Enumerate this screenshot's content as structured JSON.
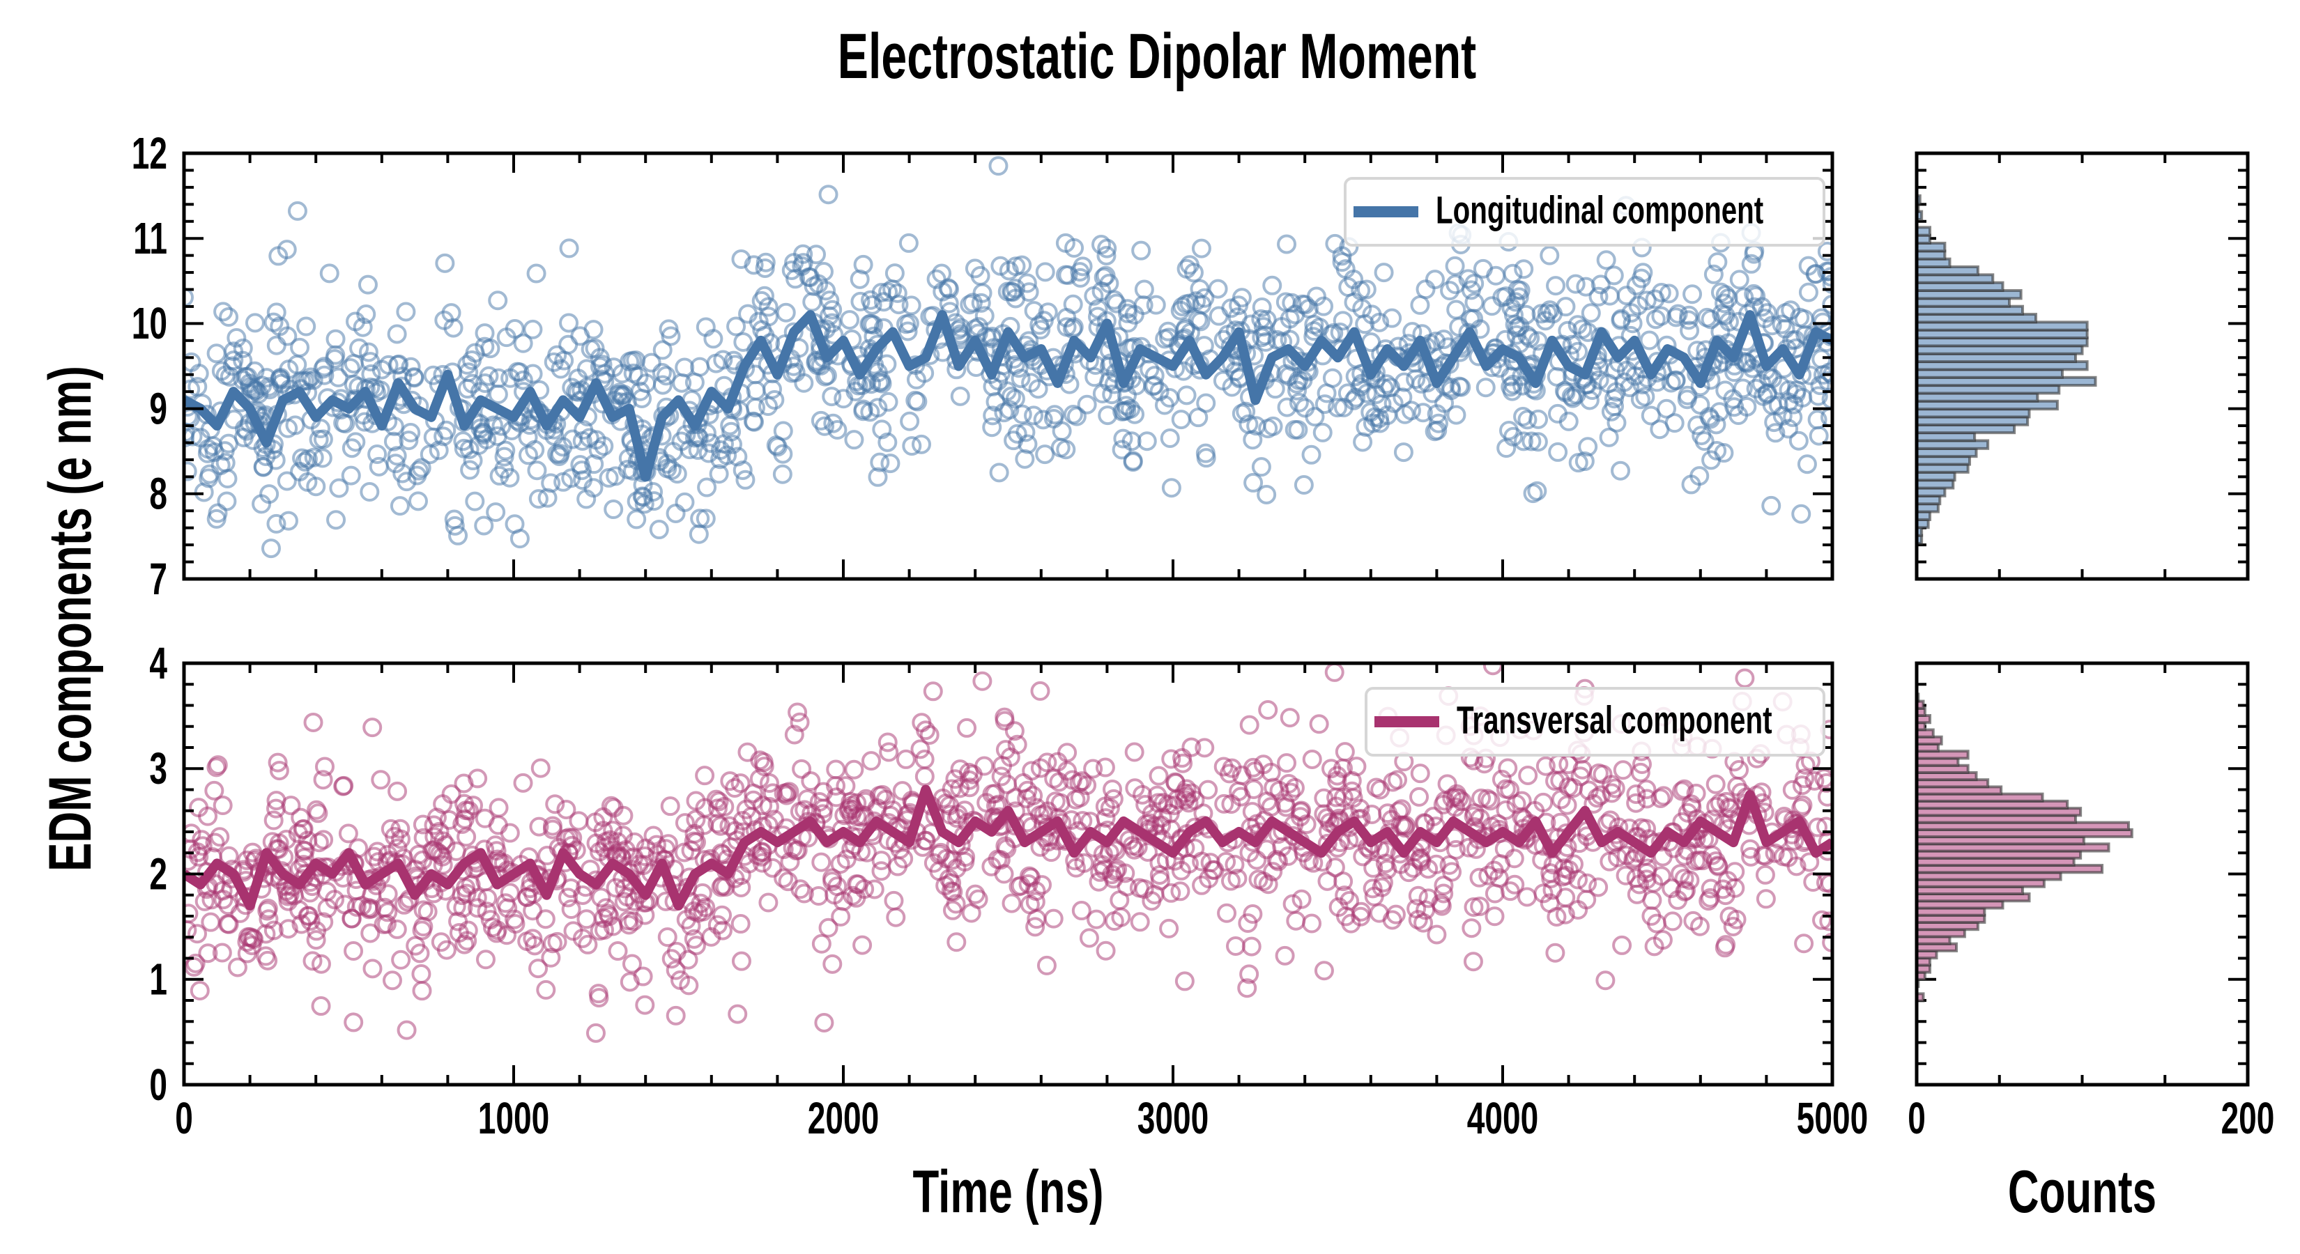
{
  "chart_data": [
    {
      "type": "scatter",
      "panel": "top-main",
      "title": "Electrostatic Dipolar Moment",
      "xlabel": "Time (ns)",
      "ylabel": "EDM components (e nm)",
      "xlim": [
        0,
        5000
      ],
      "ylim": [
        7,
        12
      ],
      "xticks": [
        "0",
        "1000",
        "2000",
        "3000",
        "4000",
        "5000"
      ],
      "yticks": [
        "7",
        "8",
        "9",
        "10",
        "11",
        "12"
      ],
      "legend": {
        "label": "Longitudinal component",
        "placement": "top-right"
      },
      "color": "#4575a8",
      "scatter": {
        "n": 1400,
        "noise_sd": 0.6,
        "seed": 11
      },
      "line_x_step": 50,
      "line_y": [
        9.1,
        9.0,
        8.8,
        9.2,
        9.0,
        8.6,
        9.1,
        9.2,
        8.9,
        9.1,
        9.0,
        9.2,
        8.8,
        9.3,
        9.0,
        8.9,
        9.4,
        8.8,
        9.1,
        9.0,
        8.9,
        9.2,
        8.8,
        9.1,
        8.9,
        9.3,
        8.9,
        9.0,
        8.2,
        8.9,
        9.1,
        8.8,
        9.2,
        9.0,
        9.5,
        9.8,
        9.4,
        9.9,
        10.1,
        9.6,
        9.8,
        9.4,
        9.7,
        9.9,
        9.5,
        9.6,
        10.1,
        9.5,
        9.8,
        9.4,
        9.9,
        9.6,
        9.7,
        9.3,
        9.8,
        9.6,
        10.0,
        9.3,
        9.7,
        9.6,
        9.5,
        9.8,
        9.4,
        9.6,
        9.9,
        9.1,
        9.6,
        9.7,
        9.5,
        9.8,
        9.6,
        9.9,
        9.4,
        9.7,
        9.5,
        9.8,
        9.3,
        9.6,
        9.9,
        9.5,
        9.7,
        9.6,
        9.3,
        9.8,
        9.5,
        9.4,
        9.9,
        9.6,
        9.8,
        9.4,
        9.7,
        9.6,
        9.3,
        9.8,
        9.6,
        10.1,
        9.5,
        9.7,
        9.4,
        9.9,
        9.8
      ]
    },
    {
      "type": "bar",
      "panel": "top-histogram",
      "orientation": "horizontal",
      "xlabel": "Counts",
      "xlim": [
        0,
        200
      ],
      "xticks": [
        "0",
        "200"
      ],
      "ylim": [
        7,
        12
      ],
      "bin_start": 7.418,
      "bin_width": 0.0928,
      "counts": [
        3,
        3,
        7,
        8,
        13,
        14,
        17,
        22,
        23,
        31,
        32,
        36,
        43,
        35,
        59,
        67,
        68,
        85,
        73,
        86,
        108,
        88,
        103,
        96,
        100,
        103,
        103,
        103,
        72,
        64,
        56,
        63,
        52,
        46,
        37,
        20,
        17,
        17,
        8,
        8,
        0,
        3,
        1,
        2
      ],
      "color": "#9cb7d4"
    },
    {
      "type": "scatter",
      "panel": "bottom-main",
      "xlim": [
        0,
        5000
      ],
      "ylim": [
        0,
        4
      ],
      "xticks": [
        "0",
        "1000",
        "2000",
        "3000",
        "4000",
        "5000"
      ],
      "yticks": [
        "0",
        "1",
        "2",
        "3",
        "4"
      ],
      "legend": {
        "label": "Transversal component",
        "placement": "top-right"
      },
      "color": "#a8336f",
      "scatter": {
        "n": 1400,
        "noise_sd": 0.48,
        "seed": 23
      },
      "line_x_step": 50,
      "line_y": [
        2.0,
        1.9,
        2.1,
        2.0,
        1.7,
        2.2,
        2.0,
        1.9,
        2.1,
        2.0,
        2.2,
        1.9,
        2.0,
        2.1,
        1.8,
        2.0,
        1.9,
        2.1,
        2.2,
        1.9,
        2.0,
        2.1,
        1.8,
        2.2,
        2.0,
        1.9,
        2.1,
        2.0,
        1.8,
        2.1,
        1.7,
        2.0,
        2.1,
        2.0,
        2.3,
        2.4,
        2.3,
        2.4,
        2.5,
        2.3,
        2.4,
        2.3,
        2.5,
        2.4,
        2.3,
        2.8,
        2.4,
        2.3,
        2.5,
        2.4,
        2.6,
        2.3,
        2.4,
        2.5,
        2.2,
        2.4,
        2.3,
        2.5,
        2.4,
        2.3,
        2.2,
        2.4,
        2.5,
        2.3,
        2.4,
        2.3,
        2.5,
        2.4,
        2.3,
        2.2,
        2.4,
        2.5,
        2.3,
        2.4,
        2.2,
        2.4,
        2.3,
        2.5,
        2.4,
        2.3,
        2.4,
        2.3,
        2.5,
        2.2,
        2.4,
        2.6,
        2.3,
        2.4,
        2.3,
        2.2,
        2.4,
        2.3,
        2.5,
        2.4,
        2.3,
        2.75,
        2.3,
        2.4,
        2.5,
        2.2,
        2.3
      ]
    },
    {
      "type": "bar",
      "panel": "bottom-histogram",
      "orientation": "horizontal",
      "xlim": [
        0,
        200
      ],
      "xticks": [
        "0",
        "200"
      ],
      "ylim": [
        0,
        4
      ],
      "bin_start": 0.796,
      "bin_width": 0.0677,
      "counts": [
        4,
        0,
        1,
        5,
        8,
        8,
        12,
        24,
        20,
        29,
        37,
        41,
        41,
        52,
        68,
        64,
        77,
        87,
        112,
        95,
        99,
        116,
        101,
        130,
        128,
        96,
        99,
        91,
        76,
        51,
        43,
        36,
        31,
        25,
        31,
        13,
        15,
        10,
        5,
        8,
        5,
        4,
        1
      ],
      "color": "#d596b8"
    }
  ]
}
